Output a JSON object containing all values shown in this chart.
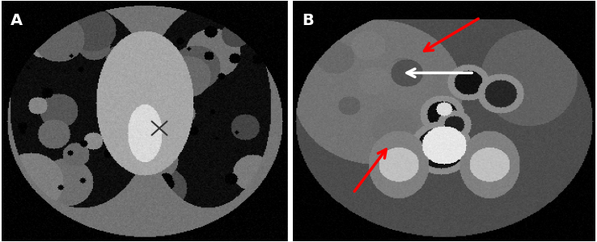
{
  "figsize": [
    7.38,
    3.0
  ],
  "dpi": 100,
  "background_color": "#ffffff",
  "panel_a": {
    "label": "A",
    "label_color": "#ffffff",
    "label_fontsize": 14,
    "label_fontweight": "bold"
  },
  "panel_b": {
    "label": "B",
    "label_color": "#ffffff",
    "label_fontsize": 14,
    "label_fontweight": "bold"
  },
  "split_ratio": 0.485
}
